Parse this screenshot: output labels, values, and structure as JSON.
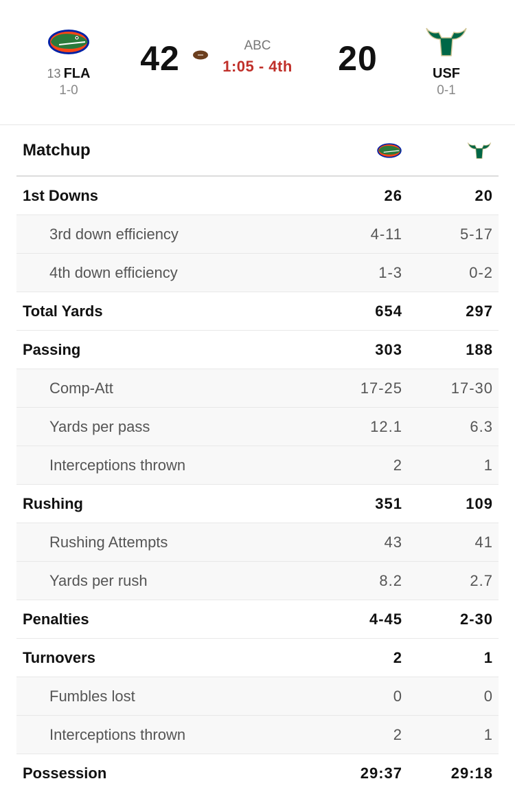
{
  "game": {
    "network": "ABC",
    "clock": "1:05 - 4th"
  },
  "away": {
    "rank": "13",
    "abbr": "FLA",
    "record": "1-0",
    "score": "42",
    "logo_icon": "florida-gators-logo-icon",
    "colors": {
      "primary": "#0021A5",
      "accent": "#FA4616",
      "gator": "#2a7a3b"
    }
  },
  "home": {
    "abbr": "USF",
    "record": "0-1",
    "score": "20",
    "logo_icon": "usf-bulls-logo-icon",
    "colors": {
      "primary": "#006747",
      "accent": "#CFC493"
    }
  },
  "matchup": {
    "title": "Matchup",
    "rows": [
      {
        "label": "1st Downs",
        "away": "26",
        "home": "20",
        "type": "main"
      },
      {
        "label": "3rd down efficiency",
        "away": "4-11",
        "home": "5-17",
        "type": "sub"
      },
      {
        "label": "4th down efficiency",
        "away": "1-3",
        "home": "0-2",
        "type": "sub"
      },
      {
        "label": "Total Yards",
        "away": "654",
        "home": "297",
        "type": "main"
      },
      {
        "label": "Passing",
        "away": "303",
        "home": "188",
        "type": "main"
      },
      {
        "label": "Comp-Att",
        "away": "17-25",
        "home": "17-30",
        "type": "sub"
      },
      {
        "label": "Yards per pass",
        "away": "12.1",
        "home": "6.3",
        "type": "sub"
      },
      {
        "label": "Interceptions thrown",
        "away": "2",
        "home": "1",
        "type": "sub"
      },
      {
        "label": "Rushing",
        "away": "351",
        "home": "109",
        "type": "main"
      },
      {
        "label": "Rushing Attempts",
        "away": "43",
        "home": "41",
        "type": "sub"
      },
      {
        "label": "Yards per rush",
        "away": "8.2",
        "home": "2.7",
        "type": "sub"
      },
      {
        "label": "Penalties",
        "away": "4-45",
        "home": "2-30",
        "type": "main"
      },
      {
        "label": "Turnovers",
        "away": "2",
        "home": "1",
        "type": "main"
      },
      {
        "label": "Fumbles lost",
        "away": "0",
        "home": "0",
        "type": "sub"
      },
      {
        "label": "Interceptions thrown",
        "away": "2",
        "home": "1",
        "type": "sub"
      },
      {
        "label": "Possession",
        "away": "29:37",
        "home": "29:18",
        "type": "main"
      }
    ]
  }
}
